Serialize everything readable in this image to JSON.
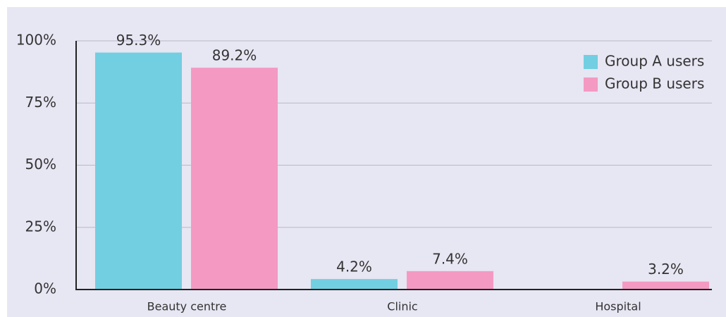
{
  "chart_data": {
    "type": "bar",
    "categories": [
      "Beauty centre",
      "Clinic",
      "Hospital"
    ],
    "series": [
      {
        "name": "Group A users",
        "color": "#72cfe1",
        "values": [
          95.3,
          4.2,
          null
        ],
        "value_labels": [
          "95.3%",
          "4.2%",
          null
        ]
      },
      {
        "name": "Group B users",
        "color": "#f49ac2",
        "values": [
          89.2,
          7.4,
          3.2
        ],
        "value_labels": [
          "89.2%",
          "7.4%",
          "3.2%"
        ]
      }
    ],
    "ylim": [
      0,
      100
    ],
    "yticks": [
      {
        "value": 0,
        "label": "0%"
      },
      {
        "value": 25,
        "label": "25%"
      },
      {
        "value": 50,
        "label": "50%"
      },
      {
        "value": 75,
        "label": "75%"
      },
      {
        "value": 100,
        "label": "100%"
      }
    ],
    "grid": true,
    "legend": "top-right"
  }
}
